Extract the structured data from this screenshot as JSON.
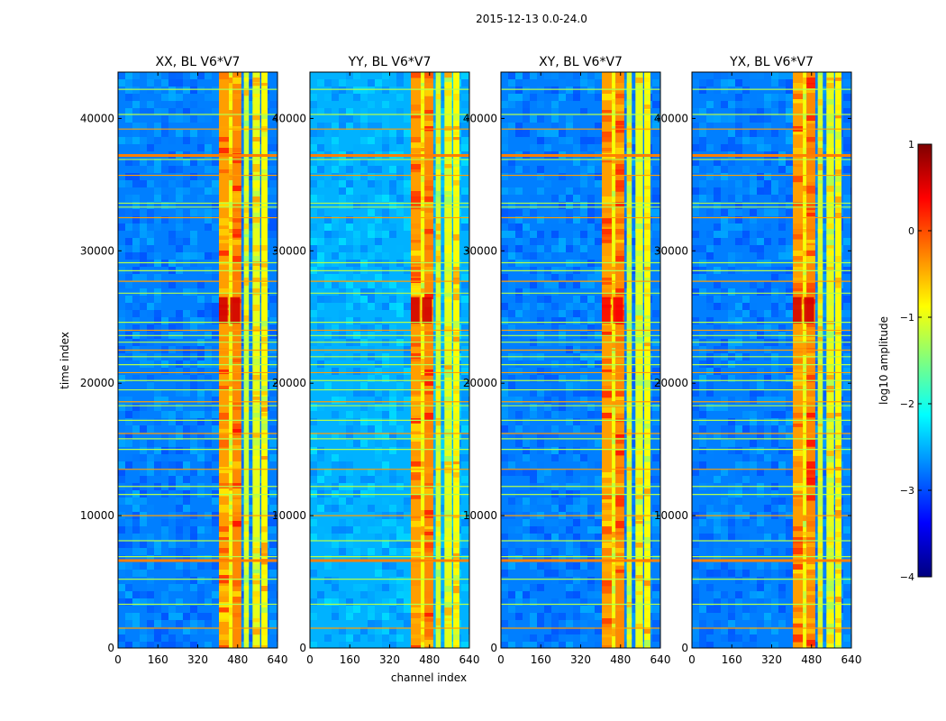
{
  "figure": {
    "suptitle": "2015-12-13 0.0-24.0",
    "shared_ylabel": "time index",
    "shared_xlabel": "channel index"
  },
  "chart_data": [
    {
      "type": "heatmap",
      "title": "XX, BL V6*V7",
      "xlabel": "",
      "ylabel": "time index",
      "xlim": [
        0,
        640
      ],
      "ylim": [
        0,
        43500
      ],
      "xticks": [
        0,
        160,
        320,
        480,
        640
      ],
      "yticks": [
        0,
        10000,
        20000,
        30000,
        40000
      ]
    },
    {
      "type": "heatmap",
      "title": "YY, BL V6*V7",
      "xlabel": "channel index",
      "ylabel": "",
      "xlim": [
        0,
        640
      ],
      "ylim": [
        0,
        43500
      ],
      "xticks": [
        0,
        160,
        320,
        480,
        640
      ],
      "yticks": [
        0,
        10000,
        20000,
        30000,
        40000
      ]
    },
    {
      "type": "heatmap",
      "title": "XY, BL V6*V7",
      "xlabel": "",
      "ylabel": "",
      "xlim": [
        0,
        640
      ],
      "ylim": [
        0,
        43500
      ],
      "xticks": [
        0,
        160,
        320,
        480,
        640
      ],
      "yticks": [
        0,
        10000,
        20000,
        30000,
        40000
      ]
    },
    {
      "type": "heatmap",
      "title": "YX, BL V6*V7",
      "xlabel": "",
      "ylabel": "",
      "xlim": [
        0,
        640
      ],
      "ylim": [
        0,
        43500
      ],
      "xticks": [
        0,
        160,
        320,
        480,
        640
      ],
      "yticks": [
        0,
        10000,
        20000,
        30000,
        40000
      ]
    }
  ],
  "colorbar": {
    "label": "log10 amplitude",
    "range": [
      -4,
      1
    ],
    "ticks": [
      1,
      0,
      -1,
      -2,
      -3,
      -4
    ],
    "tick_labels": [
      "1",
      "0",
      "−1",
      "−2",
      "−3",
      "−4"
    ],
    "colormap": "jet",
    "colors": [
      "#00007f",
      "#0000ff",
      "#007fff",
      "#00ffff",
      "#7fff7f",
      "#ffff00",
      "#ff7f00",
      "#ff0000",
      "#7f0000"
    ]
  },
  "features": {
    "bright_channel_bands": [
      [
        405,
        445
      ],
      [
        445,
        460
      ],
      [
        460,
        495
      ],
      [
        505,
        525
      ],
      [
        540,
        570
      ],
      [
        575,
        600
      ]
    ],
    "horizontal_flag_lines": [
      1500,
      3300,
      5200,
      6600,
      6900,
      8100,
      10000,
      11600,
      12200,
      13500,
      15000,
      15800,
      16200,
      17200,
      18300,
      18600,
      19500,
      20200,
      20800,
      21400,
      22000,
      22500,
      23100,
      23600,
      24000,
      24600,
      26800,
      27700,
      28500,
      29100,
      32500,
      33300,
      33600,
      35700,
      36900,
      37200,
      39200,
      40300,
      42200
    ],
    "flare_row_range": [
      24500,
      26500
    ]
  }
}
